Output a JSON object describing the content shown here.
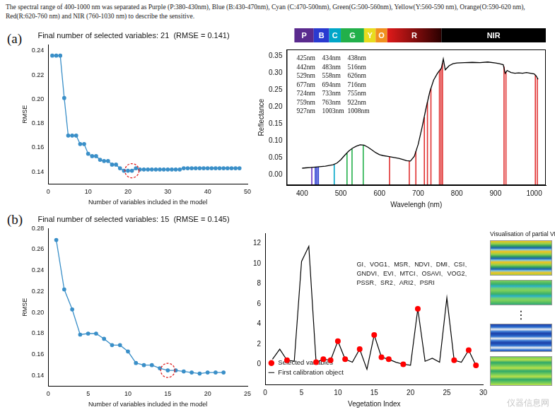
{
  "caption": "The spectral range of 400-1000 nm was separated as Purple (P:380-430nm), Blue (B:430-470nm), Cyan (C:470-500nm), Green(G:500-560nm), Yellow(Y:560-590 nm), Orange(O:590-620 nm), Red(R:620-760 nm) and NIR (760-1030 nm) to describe the sensitive.",
  "panels": [
    "(a)",
    "(b)"
  ],
  "image_panel": {
    "title": "Visualisation of partial VIs",
    "ellipsis": "⋮"
  },
  "watermark": "仪器信息网",
  "chart_data": [
    {
      "type": "line",
      "title": "Final number of selected variables: 21  (RMSE = 0.141)",
      "x_label": "Number of variables included in the model",
      "y_label": "RMSE",
      "x": [
        1,
        2,
        3,
        4,
        5,
        6,
        7,
        8,
        9,
        10,
        11,
        12,
        13,
        14,
        15,
        16,
        17,
        18,
        19,
        20,
        21,
        22,
        23,
        24,
        25,
        26,
        27,
        28,
        29,
        30,
        31,
        32,
        33,
        34,
        35,
        36,
        37,
        38,
        39,
        40,
        41,
        42,
        43,
        44,
        45,
        46,
        47,
        48
      ],
      "values": [
        0.236,
        0.236,
        0.236,
        0.201,
        0.17,
        0.17,
        0.17,
        0.163,
        0.163,
        0.155,
        0.153,
        0.153,
        0.15,
        0.149,
        0.149,
        0.146,
        0.146,
        0.143,
        0.141,
        0.141,
        0.141,
        0.143,
        0.142,
        0.142,
        0.142,
        0.142,
        0.142,
        0.142,
        0.142,
        0.142,
        0.142,
        0.142,
        0.142,
        0.143,
        0.143,
        0.143,
        0.143,
        0.143,
        0.143,
        0.143,
        0.143,
        0.143,
        0.143,
        0.143,
        0.143,
        0.143,
        0.143,
        0.143
      ],
      "color": "#3a8fc8",
      "marker": "circle",
      "grid": false,
      "xlim": [
        0,
        50
      ],
      "xticks": [
        0,
        10,
        20,
        30,
        40,
        50
      ],
      "ylim": [
        0.13,
        0.245
      ],
      "yticks": [
        0.14,
        0.16,
        0.18,
        {
          "value": 0.2,
          "label": "0.20"
        },
        0.22,
        0.24
      ],
      "highlight_x": 21
    },
    {
      "type": "line",
      "x_label": "Wavelengh (nm)",
      "y_label": "Reflectance",
      "x": [
        400,
        410,
        420,
        430,
        440,
        450,
        460,
        470,
        480,
        490,
        500,
        510,
        520,
        530,
        540,
        550,
        560,
        570,
        580,
        590,
        600,
        610,
        620,
        630,
        640,
        650,
        660,
        670,
        680,
        690,
        700,
        710,
        720,
        730,
        740,
        750,
        760,
        765,
        770,
        780,
        790,
        800,
        820,
        840,
        860,
        880,
        900,
        910,
        920,
        925,
        930,
        940,
        950,
        960,
        970,
        980,
        990,
        1000,
        1005,
        1010
      ],
      "values": [
        0.02,
        0.021,
        0.022,
        0.023,
        0.024,
        0.025,
        0.026,
        0.028,
        0.03,
        0.035,
        0.045,
        0.058,
        0.07,
        0.079,
        0.085,
        0.089,
        0.088,
        0.082,
        0.074,
        0.066,
        0.06,
        0.057,
        0.055,
        0.053,
        0.051,
        0.049,
        0.046,
        0.042,
        0.041,
        0.055,
        0.09,
        0.14,
        0.195,
        0.245,
        0.28,
        0.3,
        0.315,
        0.342,
        0.31,
        0.322,
        0.328,
        0.33,
        0.331,
        0.332,
        0.331,
        0.333,
        0.33,
        0.328,
        0.325,
        0.3,
        0.308,
        0.302,
        0.3,
        0.301,
        0.3,
        0.302,
        0.3,
        0.298,
        0.292,
        0.282
      ],
      "color": "#000000",
      "grid": false,
      "xlim": [
        360,
        1030
      ],
      "xticks": [
        400,
        500,
        600,
        700,
        800,
        900,
        1000
      ],
      "ylim": [
        -0.03,
        0.37
      ],
      "yticks": [
        {
          "value": 0,
          "label": "0.00"
        },
        0.05,
        {
          "value": 0.1,
          "label": "0.10"
        },
        0.15,
        {
          "value": 0.2,
          "label": "0.20"
        },
        0.25,
        {
          "value": 0.3,
          "label": "0.30"
        },
        0.35
      ],
      "bands": [
        {
          "label": "P",
          "start": 380,
          "end": 430,
          "color": "#5a2a8e"
        },
        {
          "label": "B",
          "start": 430,
          "end": 470,
          "color": "#2a3ad0"
        },
        {
          "label": "C",
          "start": 470,
          "end": 500,
          "color": "#00a6c8"
        },
        {
          "label": "G",
          "start": 500,
          "end": 560,
          "color": "#22b04a"
        },
        {
          "label": "Y",
          "start": 560,
          "end": 590,
          "color": "#e8dc1e"
        },
        {
          "label": "O",
          "start": 590,
          "end": 620,
          "color": "#f0901e"
        },
        {
          "label": "R",
          "start": 620,
          "end": 760,
          "color": "#e01a1a"
        },
        {
          "label": "NIR",
          "start": 760,
          "end": 1030,
          "color": "#000000"
        }
      ],
      "selected_wavelengths": {
        "x": [
          425,
          434,
          438,
          442,
          483,
          516,
          529,
          558,
          626,
          677,
          694,
          716,
          724,
          733,
          755,
          759,
          763,
          922,
          927,
          1003,
          1008
        ],
        "values": [
          0.022,
          0.023,
          0.023,
          0.024,
          0.031,
          0.064,
          0.077,
          0.089,
          0.054,
          0.041,
          0.07,
          0.17,
          0.215,
          0.255,
          0.308,
          0.313,
          0.33,
          0.32,
          0.303,
          0.294,
          0.285
        ],
        "value_labels": [
          "425nm",
          "434nm",
          "438nm",
          "442nm",
          "483nm",
          "516nm",
          "529nm",
          "558nm",
          "626nm",
          "677nm",
          "694nm",
          "716nm",
          "724nm",
          "733nm",
          "755nm",
          "759nm",
          "763nm",
          "922nm",
          "927nm",
          "1003nm",
          "1008nm"
        ],
        "colors": [
          "#6a30c0",
          "#2a3ad0",
          "#2a3ad0",
          "#2a3ad0",
          "#00a6c8",
          "#22b04a",
          "#22b04a",
          "#22b04a",
          "#e03030",
          "#e03030",
          "#e03030",
          "#e03030",
          "#e03030",
          "#e03030",
          "#e03030",
          "#e03030",
          "#e03030",
          "#e03030",
          "#e03030",
          "#e03030",
          "#e03030"
        ]
      }
    },
    {
      "type": "line",
      "title": "Final number of selected variables: 15  (RMSE = 0.145)",
      "x_label": "Number of variables included in the model",
      "y_label": "RMSE",
      "x": [
        1,
        2,
        3,
        4,
        5,
        6,
        7,
        8,
        9,
        10,
        11,
        12,
        13,
        14,
        15,
        16,
        17,
        18,
        19,
        20,
        21,
        22
      ],
      "values": [
        0.269,
        0.222,
        0.203,
        0.179,
        0.18,
        0.18,
        0.175,
        0.169,
        0.169,
        0.163,
        0.152,
        0.15,
        0.15,
        0.147,
        0.145,
        0.145,
        0.144,
        0.143,
        0.142,
        0.143,
        0.143,
        0.143
      ],
      "color": "#3a8fc8",
      "marker": "circle",
      "grid": false,
      "xlim": [
        0,
        25
      ],
      "xticks": [
        0,
        5,
        10,
        15,
        20,
        25
      ],
      "ylim": [
        0.13,
        0.28
      ],
      "yticks": [
        0.14,
        0.16,
        0.18,
        {
          "value": 0.2,
          "label": "0.20"
        },
        0.22,
        0.24,
        0.26,
        0.28
      ],
      "highlight_x": 15
    },
    {
      "type": "line",
      "x_label": "Vegetation Index",
      "grid": false,
      "legend": "upper right",
      "xlim": [
        0,
        30
      ],
      "xticks": [
        0,
        5,
        10,
        15,
        20,
        25,
        30
      ],
      "ylim": [
        -2,
        13
      ],
      "yticks": [
        0,
        2,
        4,
        6,
        8,
        10,
        12
      ],
      "series": [
        {
          "name": "First calibration object",
          "color": "#000000",
          "type": "line",
          "marker": "none",
          "x": [
            1,
            2,
            3,
            4,
            5,
            6,
            7,
            8,
            9,
            10,
            11,
            12,
            13,
            14,
            15,
            16,
            17,
            18,
            19,
            20,
            21,
            22,
            23,
            24,
            25,
            26,
            27,
            28,
            29
          ],
          "values": [
            0.5,
            1.5,
            0.4,
            0.3,
            10.2,
            11.7,
            0.2,
            0.5,
            0.4,
            2.3,
            0.5,
            0.2,
            1.5,
            -0.5,
            2.9,
            0.7,
            0.5,
            0.2,
            0.0,
            -0.1,
            5.5,
            0.3,
            0.6,
            0.2,
            6.6,
            0.4,
            0.2,
            1.4,
            -0.1
          ]
        },
        {
          "name": "Selected variables",
          "color": "#ff0000",
          "type": "scatter",
          "marker": "circle",
          "x": [
            3,
            7,
            8,
            9,
            10,
            11,
            13,
            15,
            16,
            17,
            19,
            21,
            26,
            28,
            29
          ],
          "values": [
            0.4,
            0.2,
            0.5,
            0.4,
            2.3,
            0.5,
            1.5,
            2.9,
            0.7,
            0.5,
            0.0,
            5.5,
            0.4,
            1.4,
            -0.1
          ]
        }
      ],
      "annotation": [
        "GI、VOG1、MSR、NDVI、DMI、CSI、",
        "GNDVI、EVI、MTCI、OSAVI、VOG2、",
        "PSSR、SR2、ARI2、PSRI"
      ]
    }
  ]
}
